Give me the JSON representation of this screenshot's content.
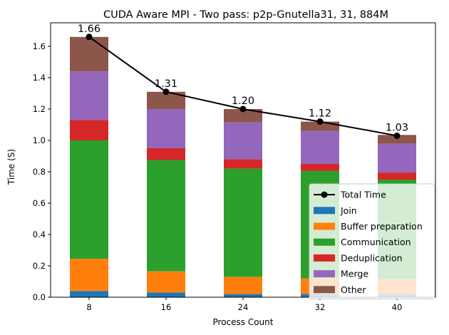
{
  "chart_data": {
    "type": "bar",
    "stacked": true,
    "title": "CUDA Aware MPI - Two pass: p2p-Gnutella31, 31, 884M",
    "xlabel": "Process Count",
    "ylabel": "Time (S)",
    "categories": [
      "8",
      "16",
      "24",
      "32",
      "40"
    ],
    "ylim": [
      0,
      1.75
    ],
    "yticks": [
      0.0,
      0.2,
      0.4,
      0.6,
      0.8,
      1.0,
      1.2,
      1.4,
      1.6
    ],
    "ytick_labels": [
      "0.0",
      "0.2",
      "0.4",
      "0.6",
      "0.8",
      "1.0",
      "1.2",
      "1.4",
      "1.6"
    ],
    "grid": false,
    "legend_position": "lower-right",
    "series": [
      {
        "name": "Join",
        "color": "#1f77b4",
        "values": [
          0.04,
          0.03,
          0.02,
          0.02,
          0.02
        ]
      },
      {
        "name": "Buffer preparation",
        "color": "#ff7f0e",
        "values": [
          0.205,
          0.135,
          0.11,
          0.1,
          0.095
        ]
      },
      {
        "name": "Communication",
        "color": "#2ca02c",
        "values": [
          0.755,
          0.71,
          0.69,
          0.685,
          0.635
        ]
      },
      {
        "name": "Deduplication",
        "color": "#d62728",
        "values": [
          0.13,
          0.075,
          0.06,
          0.045,
          0.045
        ]
      },
      {
        "name": "Merge",
        "color": "#9467bd",
        "values": [
          0.31,
          0.25,
          0.235,
          0.21,
          0.185
        ]
      },
      {
        "name": "Other",
        "color": "#8c564b",
        "values": [
          0.22,
          0.11,
          0.085,
          0.06,
          0.055
        ]
      }
    ],
    "line": {
      "name": "Total Time",
      "color": "#000000",
      "values": [
        1.66,
        1.31,
        1.2,
        1.12,
        1.03
      ],
      "labels": [
        "1.66",
        "1.31",
        "1.20",
        "1.12",
        "1.03"
      ]
    }
  }
}
